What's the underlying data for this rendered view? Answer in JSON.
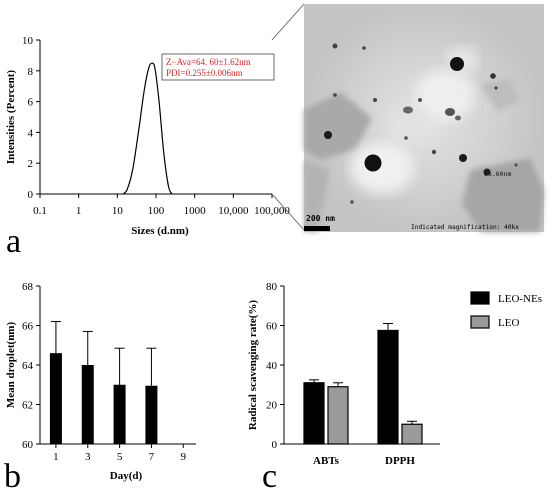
{
  "panels": {
    "a": "a",
    "b": "b",
    "c": "c"
  },
  "chart_data": [
    {
      "id": "size-distribution",
      "type": "line",
      "xscale": "log",
      "xlim": [
        0.1,
        100000
      ],
      "ylim": [
        0,
        10
      ],
      "xlabel": "Sizes (d.nm)",
      "ylabel": "Intensities (Percent)",
      "xticks": [
        "0.1",
        "1",
        "10",
        "100",
        "1000",
        "10,000",
        "100,000"
      ],
      "yticks": [
        0,
        2,
        4,
        6,
        8,
        10
      ],
      "x": [
        14,
        18,
        25,
        35,
        50,
        65,
        80,
        95,
        120,
        160,
        210,
        260
      ],
      "y": [
        0,
        0.3,
        1.6,
        4.0,
        6.8,
        8.2,
        8.5,
        8.1,
        6.0,
        2.6,
        0.5,
        0
      ],
      "annotation": [
        "Z−Ava=64. 60±1.62nm",
        "PDI=0.255±0.006nm"
      ],
      "line_color": "#000000"
    },
    {
      "id": "tem-image",
      "type": "image",
      "scale_bar": "200 nm",
      "magnification": "Indicated magnification: 40kx",
      "particle_label": "66.60nm"
    },
    {
      "id": "mean-droplet",
      "type": "bar",
      "xlabel": "Day(d)",
      "ylabel": "Mean droplet(nm)",
      "xticks": [
        "1",
        "3",
        "5",
        "7",
        "9"
      ],
      "yticks": [
        60,
        62,
        64,
        66,
        68
      ],
      "ylim": [
        60,
        68
      ],
      "categories": [
        1,
        3,
        5,
        7
      ],
      "values": [
        64.6,
        64.0,
        63.0,
        62.95
      ],
      "errors": [
        1.6,
        1.7,
        1.85,
        1.9
      ],
      "bar_color": "#000000"
    },
    {
      "id": "radical-scavenging",
      "type": "bar",
      "xlabel": "",
      "ylabel": "Radical scavenging rate(%)",
      "yticks": [
        0,
        20,
        40,
        60,
        80
      ],
      "ylim": [
        0,
        80
      ],
      "categories": [
        "ABTs",
        "DPPH"
      ],
      "series": [
        {
          "name": "LEO-NEs",
          "values": [
            31,
            57.5
          ],
          "errors": [
            1.5,
            3.5
          ],
          "color": "#000000"
        },
        {
          "name": "LEO",
          "values": [
            29,
            10
          ],
          "errors": [
            2,
            1.5
          ],
          "color": "#9a9a9a"
        }
      ],
      "legend": "right"
    }
  ]
}
